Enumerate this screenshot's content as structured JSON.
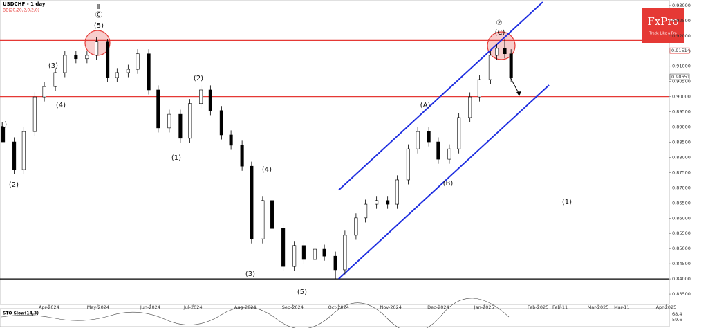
{
  "chart_data": {
    "type": "candlestick",
    "title": "USDCHF - 1 day",
    "subtitle": "BB(20,20,2,0,2,0)",
    "x": [
      2,
      9,
      15,
      22,
      28,
      35,
      41,
      48,
      55,
      61,
      68,
      74,
      81,
      87,
      94,
      100,
      107,
      114,
      120,
      127,
      133,
      140,
      146,
      153,
      159,
      166,
      172,
      179,
      186,
      192,
      199,
      205,
      212,
      218,
      225,
      231,
      238,
      245,
      251,
      258,
      264,
      271,
      277,
      284,
      290,
      297,
      303,
      310,
      314,
      319,
      323
    ],
    "open": [
      0.89,
      0.8851,
      0.876,
      0.8885,
      0.8999,
      0.9033,
      0.9079,
      0.9136,
      0.9125,
      0.9136,
      0.9182,
      0.9063,
      0.9079,
      0.909,
      0.9141,
      0.9022,
      0.8897,
      0.8942,
      0.8863,
      0.8977,
      0.9022,
      0.8954,
      0.8874,
      0.884,
      0.8771,
      0.8532,
      0.8658,
      0.8566,
      0.8441,
      0.851,
      0.8464,
      0.8498,
      0.8475,
      0.843,
      0.8544,
      0.8601,
      0.8646,
      0.8658,
      0.8646,
      0.8726,
      0.8828,
      0.8885,
      0.8851,
      0.8794,
      0.8828,
      0.8931,
      0.8999,
      0.9056,
      0.9136,
      0.9159,
      0.9141
    ],
    "high": [
      0.8915,
      0.8866,
      0.89,
      0.9014,
      0.9048,
      0.9094,
      0.9151,
      0.9151,
      0.9151,
      0.9197,
      0.919,
      0.9094,
      0.9105,
      0.9156,
      0.9156,
      0.9037,
      0.8957,
      0.8957,
      0.8992,
      0.9037,
      0.9037,
      0.8969,
      0.8889,
      0.8855,
      0.8786,
      0.8673,
      0.8673,
      0.8581,
      0.8525,
      0.8525,
      0.8513,
      0.8513,
      0.849,
      0.8559,
      0.8616,
      0.8661,
      0.8673,
      0.8673,
      0.8741,
      0.8843,
      0.89,
      0.89,
      0.8866,
      0.8843,
      0.8946,
      0.9014,
      0.9071,
      0.9151,
      0.9174,
      0.919,
      0.9156
    ],
    "low": [
      0.8836,
      0.8745,
      0.8745,
      0.887,
      0.8984,
      0.9018,
      0.9064,
      0.911,
      0.911,
      0.9121,
      0.9048,
      0.9048,
      0.9064,
      0.9075,
      0.9007,
      0.8882,
      0.8882,
      0.8848,
      0.8848,
      0.8962,
      0.8939,
      0.8859,
      0.8825,
      0.8756,
      0.8517,
      0.8517,
      0.8551,
      0.8426,
      0.8426,
      0.8449,
      0.8449,
      0.846,
      0.84,
      0.8415,
      0.8529,
      0.8586,
      0.8631,
      0.8631,
      0.8631,
      0.8711,
      0.8813,
      0.8836,
      0.8779,
      0.8779,
      0.8813,
      0.8916,
      0.8984,
      0.9041,
      0.9121,
      0.9126,
      0.9048
    ],
    "close": [
      0.8851,
      0.876,
      0.8885,
      0.8999,
      0.9033,
      0.9079,
      0.9136,
      0.9125,
      0.9136,
      0.9182,
      0.9063,
      0.9079,
      0.909,
      0.9141,
      0.9022,
      0.8897,
      0.8942,
      0.8863,
      0.8977,
      0.9022,
      0.8954,
      0.8874,
      0.884,
      0.8771,
      0.8532,
      0.8658,
      0.8566,
      0.8441,
      0.851,
      0.8464,
      0.8498,
      0.8475,
      0.843,
      0.8544,
      0.8601,
      0.8646,
      0.8658,
      0.8646,
      0.8726,
      0.8828,
      0.8885,
      0.8851,
      0.8794,
      0.8828,
      0.8931,
      0.8999,
      0.9056,
      0.9136,
      0.9159,
      0.9141,
      0.9063
    ],
    "up_color": "#ffffff",
    "down_color": "#000000",
    "xlim": [
      0,
      423
    ],
    "xticks": [
      {
        "value": 31,
        "label": "Apr-2024"
      },
      {
        "value": 62,
        "label": "May-2024"
      },
      {
        "value": 95,
        "label": "Jun-2024"
      },
      {
        "value": 122,
        "label": "Jul-2024"
      },
      {
        "value": 155,
        "label": "Aug-2024"
      },
      {
        "value": 185,
        "label": "Sep-2024"
      },
      {
        "value": 214,
        "label": "Oct-2024"
      },
      {
        "value": 247,
        "label": "Nov-2024"
      },
      {
        "value": 277,
        "label": "Dec-2024"
      },
      {
        "value": 306,
        "label": "Jan-2025"
      },
      {
        "value": 340,
        "label": "Feb-2025"
      },
      {
        "value": 354,
        "label": "Feb-11"
      },
      {
        "value": 378,
        "label": "Mar-2025"
      },
      {
        "value": 393,
        "label": "Mar-11"
      },
      {
        "value": 421,
        "label": "Apr-2025"
      }
    ],
    "ylim": [
      0.8316,
      0.9318
    ],
    "yticks": [
      {
        "value": 0.835,
        "label": "0.83500"
      },
      {
        "value": 0.84,
        "label": "0.84000"
      },
      {
        "value": 0.845,
        "label": "0.84500"
      },
      {
        "value": 0.85,
        "label": "0.85000"
      },
      {
        "value": 0.855,
        "label": "0.85500"
      },
      {
        "value": 0.86,
        "label": "0.86000"
      },
      {
        "value": 0.865,
        "label": "0.86500"
      },
      {
        "value": 0.87,
        "label": "0.87000"
      },
      {
        "value": 0.875,
        "label": "0.87500"
      },
      {
        "value": 0.88,
        "label": "0.88000"
      },
      {
        "value": 0.885,
        "label": "0.88500"
      },
      {
        "value": 0.89,
        "label": "0.89000"
      },
      {
        "value": 0.895,
        "label": "0.89500"
      },
      {
        "value": 0.9,
        "label": "0.90000"
      },
      {
        "value": 0.905,
        "label": "0.90500"
      },
      {
        "value": 0.91,
        "label": "0.91000"
      },
      {
        "value": 0.915,
        "label": "0.91500"
      },
      {
        "value": 0.92,
        "label": "0.92000"
      },
      {
        "value": 0.925,
        "label": "0.92500"
      },
      {
        "value": 0.93,
        "label": "0.93000"
      }
    ],
    "price_labels": [
      {
        "value": 0.91514,
        "label": "0.91514",
        "color": "#e53935"
      },
      {
        "value": 0.90651,
        "label": "0.90651",
        "color": "#555555"
      }
    ],
    "hlines": [
      {
        "value": 0.9185,
        "color": "#e53935"
      },
      {
        "value": 0.9,
        "color": "#e53935"
      },
      {
        "value": 0.84,
        "color": "#000000"
      }
    ],
    "channel": {
      "color": "#1f2fe0",
      "lines": [
        {
          "x": [
            214,
            343
          ],
          "y": [
            0.8692,
            0.9311
          ]
        },
        {
          "x": [
            214,
            347
          ],
          "y": [
            0.84,
            0.9038
          ]
        }
      ]
    },
    "annotations": [
      "1)",
      "(2)",
      "(3)",
      "(4)",
      "Ⅱ",
      "Ⓒ",
      "(5)",
      "(1)",
      "(2)",
      "(4)",
      "(3)",
      "(5)",
      "(A)",
      "(B)",
      "②",
      "(C)",
      "(1)"
    ],
    "brand": "FxPro",
    "slogan": "Trade Like a Pro",
    "oscillator": {
      "label": "STO Slow(14,3)",
      "values": [
        {
          "value": 68.4,
          "label": "68.4"
        },
        {
          "value": 59.6,
          "label": "59.6"
        }
      ]
    }
  }
}
